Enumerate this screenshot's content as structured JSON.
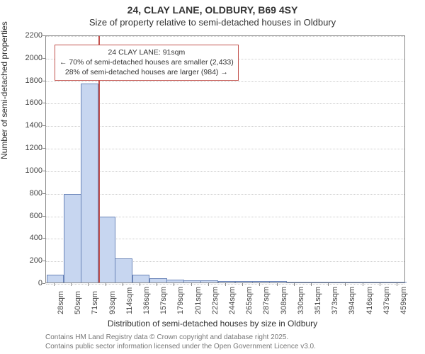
{
  "chart": {
    "type": "histogram",
    "title_line1": "24, CLAY LANE, OLDBURY, B69 4SY",
    "title_line2": "Size of property relative to semi-detached houses in Oldbury",
    "title_fontsize": 14,
    "subtitle_fontsize": 13,
    "x_axis_label": "Distribution of semi-detached houses by size in Oldbury",
    "y_axis_label": "Number of semi-detached properties",
    "axis_label_fontsize": 12,
    "tick_fontsize": 11,
    "background_color": "#ffffff",
    "plot_border_color": "#888888",
    "grid_color": "#cccccc",
    "text_color": "#333333",
    "y_ticks": [
      0,
      200,
      400,
      600,
      800,
      1000,
      1200,
      1400,
      1600,
      1800,
      2000,
      2200
    ],
    "y_lim": [
      0,
      2200
    ],
    "x_tick_labels": [
      "28sqm",
      "50sqm",
      "71sqm",
      "93sqm",
      "114sqm",
      "136sqm",
      "157sqm",
      "179sqm",
      "201sqm",
      "222sqm",
      "244sqm",
      "265sqm",
      "287sqm",
      "308sqm",
      "330sqm",
      "351sqm",
      "373sqm",
      "394sqm",
      "416sqm",
      "437sqm",
      "459sqm"
    ],
    "bars": {
      "values": [
        60,
        780,
        1760,
        580,
        210,
        60,
        30,
        18,
        15,
        10,
        8,
        6,
        5,
        4,
        3,
        2,
        2,
        1,
        1,
        0,
        0
      ],
      "fill_color": "#c7d6f0",
      "border_color": "#6a84b8",
      "bar_width_fraction": 0.94
    },
    "marker": {
      "position_sqm": 91,
      "x_min_sqm": 28,
      "x_max_sqm": 459,
      "color": "#c2524e",
      "width": 2
    },
    "annotation": {
      "border_color": "#c2524e",
      "background_color": "#ffffff",
      "fontsize": 10.5,
      "line1": "24 CLAY LANE: 91sqm",
      "line2": "← 70% of semi-detached houses are smaller (2,433)",
      "line3": "28% of semi-detached houses are larger (984) →"
    },
    "attribution": {
      "line1": "Contains HM Land Registry data © Crown copyright and database right 2025.",
      "line2": "Contains public sector information licensed under the Open Government Licence v3.0.",
      "fontsize": 10,
      "color": "#777777"
    }
  }
}
